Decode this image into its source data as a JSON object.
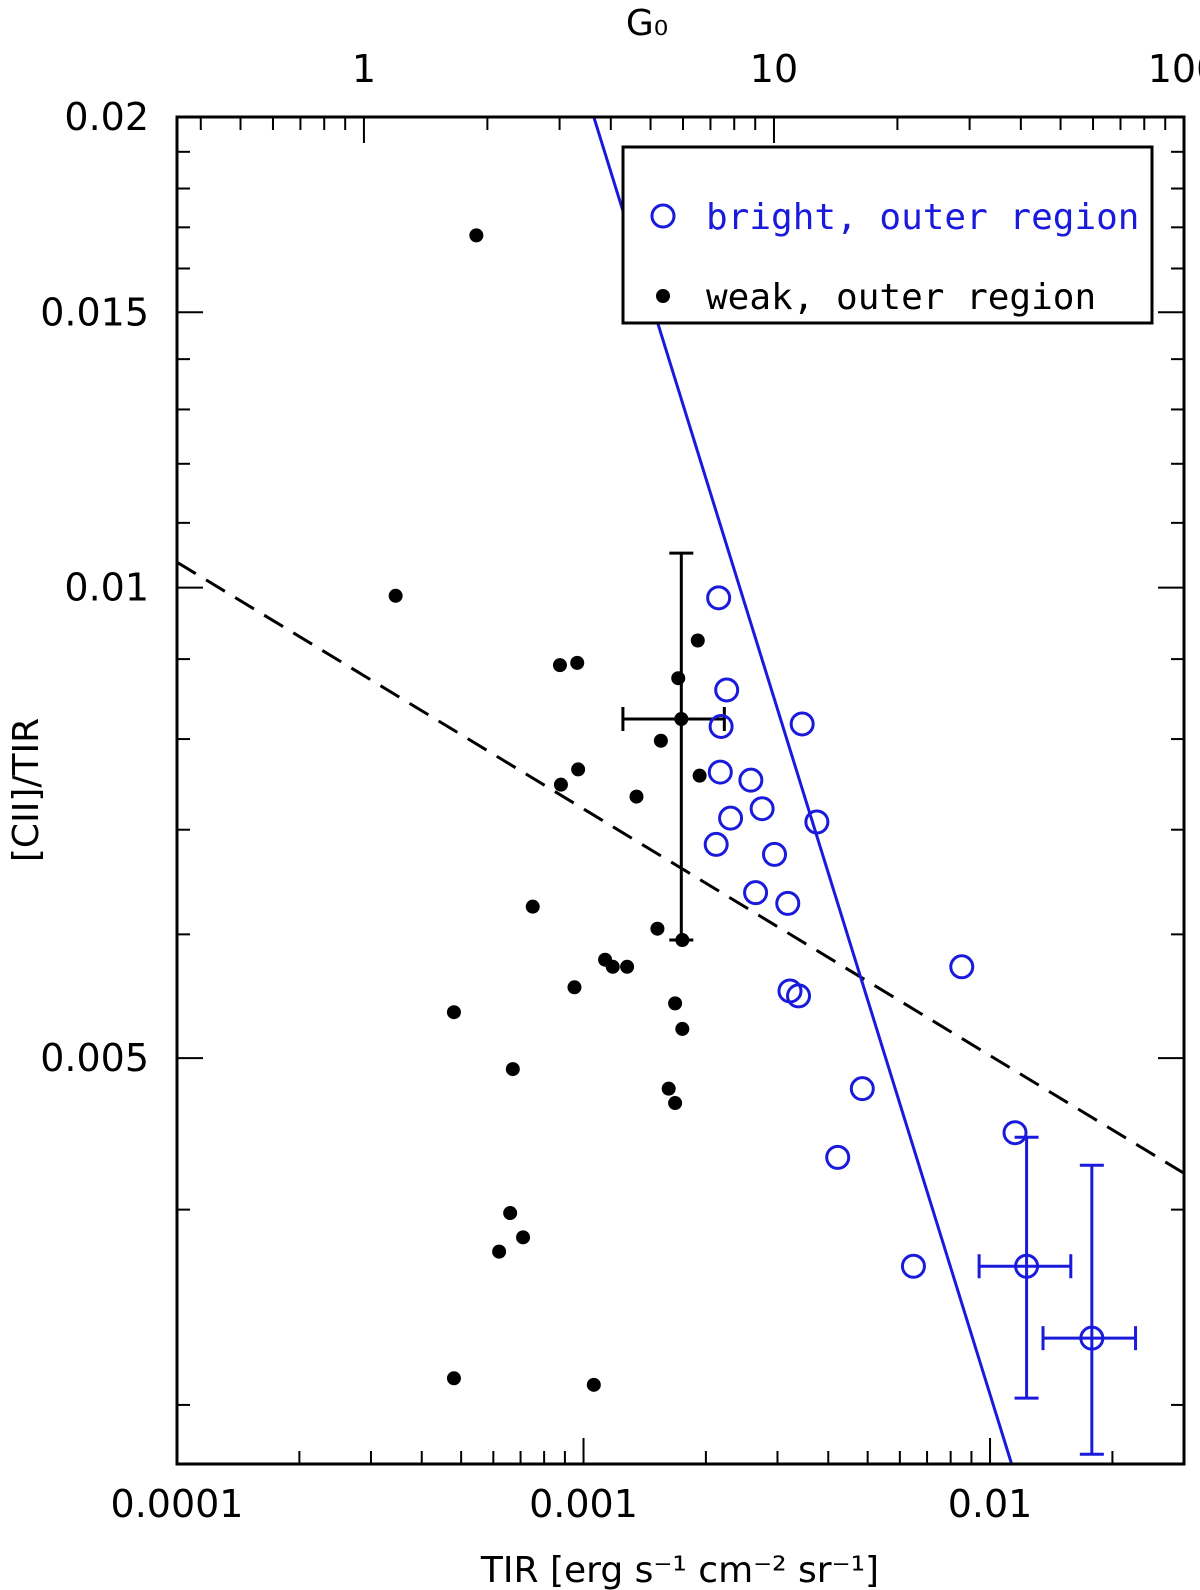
{
  "chart_data": {
    "type": "scatter",
    "xlabel": "TIR [erg s⁻¹ cm⁻² sr⁻¹]",
    "ylabel": "[CII]/TIR",
    "top_axis_label": "G₀",
    "x_scale": "log",
    "y_scale": "log",
    "xlim": [
      0.0001,
      0.03
    ],
    "ylim": [
      0.00275,
      0.02
    ],
    "top_axis_lim": [
      0.35,
      100
    ],
    "x_tick_labels": [
      {
        "value": 0.0001,
        "label": "0.0001"
      },
      {
        "value": 0.001,
        "label": "0.001"
      },
      {
        "value": 0.01,
        "label": "0.01"
      }
    ],
    "y_tick_labels": [
      {
        "value": 0.005,
        "label": "0.005"
      },
      {
        "value": 0.01,
        "label": "0.01"
      },
      {
        "value": 0.015,
        "label": "0.015"
      },
      {
        "value": 0.02,
        "label": "0.02"
      }
    ],
    "top_tick_labels": [
      {
        "value": 1,
        "label": "1"
      },
      {
        "value": 10,
        "label": "10"
      },
      {
        "value": 100,
        "label": "100"
      }
    ],
    "series": [
      {
        "name": "bright, outer region",
        "marker": "open-circle",
        "color": "#1a1adc",
        "points": [
          [
            0.00215,
            0.00985
          ],
          [
            0.00225,
            0.0086
          ],
          [
            0.00218,
            0.00815
          ],
          [
            0.00345,
            0.00818
          ],
          [
            0.00217,
            0.00762
          ],
          [
            0.00258,
            0.00753
          ],
          [
            0.00275,
            0.00722
          ],
          [
            0.00375,
            0.00708
          ],
          [
            0.0023,
            0.00712
          ],
          [
            0.00212,
            0.00685
          ],
          [
            0.00295,
            0.00675
          ],
          [
            0.00265,
            0.00638
          ],
          [
            0.00318,
            0.00628
          ],
          [
            0.00322,
            0.00552
          ],
          [
            0.00338,
            0.00548
          ],
          [
            0.00852,
            0.00572
          ],
          [
            0.00485,
            0.00478
          ],
          [
            0.00422,
            0.00432
          ],
          [
            0.01152,
            0.00448
          ],
          [
            0.00648,
            0.00368
          ]
        ]
      },
      {
        "name": "weak, outer region",
        "marker": "filled-circle",
        "color": "#000000",
        "points": [
          [
            0.000545,
            0.0168
          ],
          [
            0.000345,
            0.00988
          ],
          [
            0.000875,
            0.00892
          ],
          [
            0.000965,
            0.00895
          ],
          [
            0.00191,
            0.00925
          ],
          [
            0.00171,
            0.00875
          ],
          [
            0.00155,
            0.00798
          ],
          [
            0.00097,
            0.00765
          ],
          [
            0.00088,
            0.00748
          ],
          [
            0.00135,
            0.00735
          ],
          [
            0.00193,
            0.00758
          ],
          [
            0.00075,
            0.00625
          ],
          [
            0.00152,
            0.00605
          ],
          [
            0.00175,
            0.00595
          ],
          [
            0.00113,
            0.00578
          ],
          [
            0.00118,
            0.00572
          ],
          [
            0.00128,
            0.00572
          ],
          [
            0.00095,
            0.00555
          ],
          [
            0.00168,
            0.00542
          ],
          [
            0.00048,
            0.00535
          ],
          [
            0.00175,
            0.00522
          ],
          [
            0.00067,
            0.00492
          ],
          [
            0.00162,
            0.00478
          ],
          [
            0.00168,
            0.00468
          ],
          [
            0.00066,
            0.00398
          ],
          [
            0.00071,
            0.00384
          ],
          [
            0.00062,
            0.00376
          ],
          [
            0.00048,
            0.00312
          ],
          [
            0.00106,
            0.00309
          ]
        ]
      }
    ],
    "error_bars": [
      {
        "color": "#000000",
        "x": 0.00174,
        "y": 0.00824,
        "x_err": [
          0.00125,
          0.00222
        ],
        "y_err": [
          0.00595,
          0.01052
        ]
      },
      {
        "color": "#1a1adc",
        "x": 0.0123,
        "y": 0.00368,
        "x_err": [
          0.0094,
          0.0158
        ],
        "y_err": [
          0.00303,
          0.00445
        ]
      },
      {
        "color": "#1a1adc",
        "x": 0.0178,
        "y": 0.00331,
        "x_err": [
          0.0135,
          0.0228
        ],
        "y_err": [
          0.00279,
          0.00427
        ]
      }
    ],
    "fit_lines": [
      {
        "style": "dashed",
        "color": "#000000",
        "points": [
          [
            0.0001,
            0.01038
          ],
          [
            0.03,
            0.00422
          ]
        ]
      },
      {
        "style": "solid",
        "color": "#1a1adc",
        "points": [
          [
            0.00106,
            0.02
          ],
          [
            0.0113,
            0.00275
          ]
        ]
      }
    ],
    "legend": {
      "position": "top-right",
      "entries": [
        "bright, outer region",
        "weak, outer region"
      ]
    }
  }
}
